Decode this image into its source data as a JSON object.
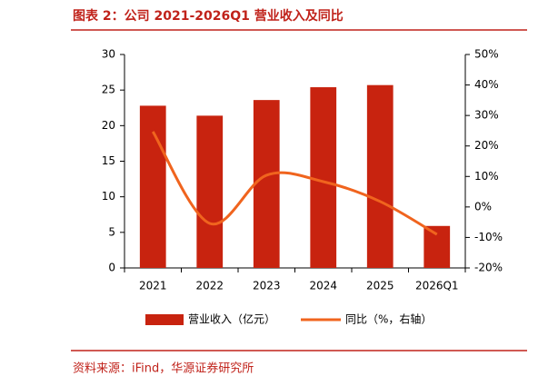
{
  "chart_data": {
    "type": "bar-line",
    "title": "图表 2：公司 2021-2026Q1 营业收入及同比",
    "source": "资料来源：iFind，华源证券研究所",
    "categories": [
      "2021",
      "2022",
      "2023",
      "2024",
      "2025",
      "2026Q1"
    ],
    "series": [
      {
        "name": "营业收入（亿元）",
        "type": "bar",
        "color": "#c8230f",
        "values": [
          22.8,
          21.4,
          23.6,
          25.4,
          25.7,
          5.9
        ]
      },
      {
        "name": "同比（%，右轴）",
        "type": "line",
        "axis": "y2",
        "color": "#f0641e",
        "values": [
          24.7,
          -5.4,
          10.4,
          8.3,
          1.8,
          -9.0
        ]
      }
    ],
    "ylim": [
      0,
      30
    ],
    "yticks": [
      0,
      5,
      10,
      15,
      20,
      25,
      30
    ],
    "y2lim": [
      -20,
      50
    ],
    "y2ticks": [
      {
        "value": -20,
        "label": "-20%"
      },
      {
        "value": -10,
        "label": "-10%"
      },
      {
        "value": 0,
        "label": "0%"
      },
      {
        "value": 10,
        "label": "10%"
      },
      {
        "value": 20,
        "label": "20%"
      },
      {
        "value": 30,
        "label": "30%"
      },
      {
        "value": 40,
        "label": "40%"
      },
      {
        "value": 50,
        "label": "50%"
      }
    ],
    "legend": "bottom"
  }
}
